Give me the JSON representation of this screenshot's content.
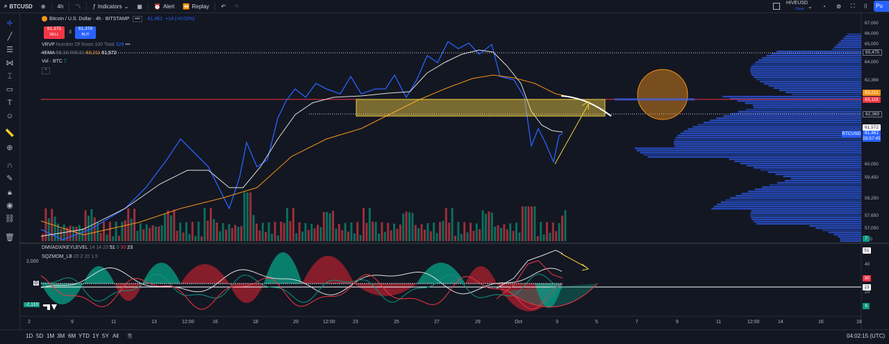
{
  "toolbar": {
    "symbol": "BTCUSD",
    "interval": "4h",
    "indicators": "Indicators",
    "alert": "Alert",
    "replay": "Replay",
    "layout_name": "HIVEUSD",
    "layout_sub": "Save",
    "publish": "Pu"
  },
  "legend": {
    "title": "Bitcoin / U.S. Dollar · 4h · BITSTAMP",
    "price": "61,461",
    "change": "+14 (+0.02%)",
    "sell_price": "61,375",
    "sell_label": "SELL",
    "spread": "3",
    "buy_price": "61,378",
    "buy_label": "BUY",
    "vrvp": "VRVP",
    "vrvp_params": "Number Of Rows 100 Total",
    "vrvp_val": "329",
    "ema": "4EMA",
    "ema_params": "55 10 200 21",
    "ema_val1": "63,211",
    "ema_val2": "61,572",
    "vol": "Vol · BTC",
    "vol_val": "7",
    "dmi": "DMI/ADX/KEYLEVEL",
    "dmi_params": "14 14 23",
    "dmi_v1": "51",
    "dmi_v2": "9",
    "dmi_v3": "30",
    "dmi_v4": "23",
    "sqz": "SQZMOM_LB",
    "sqz_params": "20 2 20 1.5"
  },
  "price_axis": [
    "67,000",
    "66,000",
    "65,475",
    "65,000",
    "64,000",
    "63,211",
    "63,118",
    "62,369",
    "61,572",
    "61,461",
    "60,050",
    "59,450",
    "58,250",
    "57,650",
    "57,050",
    "530"
  ],
  "price_axis_text": [
    "67,000",
    "66,000",
    "65,000",
    "64,000",
    "62,369",
    "60,050",
    "59,450",
    "58,250",
    "57,650",
    "57,050",
    "530"
  ],
  "price_labels": {
    "p65475": "65,475",
    "p63211": "63,211",
    "p63118": "63,118",
    "p62369": "62,369",
    "p61572": "61,572",
    "sym": "BTCUSD",
    "last": "61,461",
    "countdown": "03:57:45",
    "vol_badge": "7"
  },
  "osc_axis": {
    "a": "51",
    "b": "40",
    "c": "30",
    "d": "23",
    "e": "20",
    "f": "9",
    "left_top": "2,000",
    "left_zero": "0",
    "left_bottom": "-2,110"
  },
  "time_axis": [
    "2",
    "9",
    "11",
    "13",
    "12:00",
    "16",
    "18",
    "20",
    "12:00",
    "23",
    "25",
    "27",
    "29",
    "Oct",
    "3",
    "5",
    "7",
    "9",
    "11",
    "12:00",
    "14",
    "16",
    "18"
  ],
  "clock": "04:02:15 (UTC)",
  "ranges": [
    "1D",
    "5D",
    "1M",
    "3M",
    "6M",
    "YTD",
    "1Y",
    "5Y",
    "All"
  ],
  "colors": {
    "bg": "#131722",
    "blue": "#2962ff",
    "red": "#f23645",
    "green": "#089981",
    "yellow": "#f5d142",
    "orange": "#f7931a"
  }
}
